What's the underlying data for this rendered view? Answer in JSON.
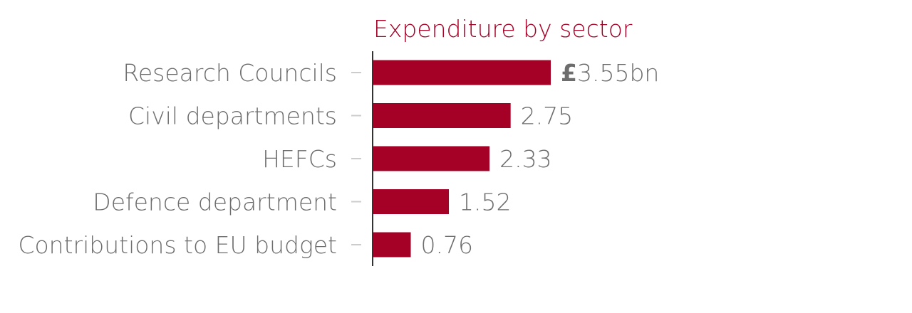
{
  "chart_data": {
    "type": "bar",
    "orientation": "horizontal",
    "title": "Expenditure by sector",
    "categories": [
      "Research Councils",
      "Civil departments",
      "HEFCs",
      "Defence department",
      "Contributions to EU budget"
    ],
    "values": [
      3.55,
      2.75,
      2.33,
      1.52,
      0.76
    ],
    "value_labels": [
      "3.55bn",
      "2.75",
      "2.33",
      "1.52",
      "0.76"
    ],
    "currency_symbol": "£",
    "xlim": [
      0,
      3.55
    ],
    "grid": false,
    "legend": "none",
    "colors": {
      "bar": "#a50026",
      "title": "#a50026",
      "text": "#6d6d6d",
      "axis": "#333333",
      "tick": "#cccccc"
    }
  }
}
